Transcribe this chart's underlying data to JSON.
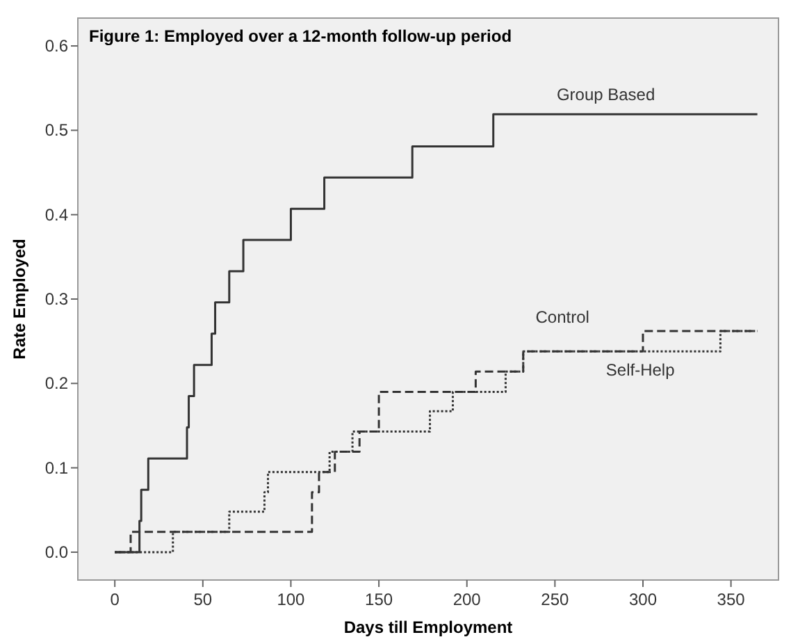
{
  "chart_data": {
    "type": "step",
    "title": "Figure 1: Employed over a 12-month follow-up period",
    "xlabel": "Days till Employment",
    "ylabel": "Rate Employed",
    "xlim": [
      -21,
      377
    ],
    "ylim": [
      -0.033,
      0.633
    ],
    "xticks": [
      0,
      50,
      100,
      150,
      200,
      250,
      300,
      350
    ],
    "yticks": [
      {
        "value": 0,
        "label": "0.0"
      },
      0.1,
      0.2,
      0.3,
      0.4,
      0.5,
      0.6
    ],
    "grid": false,
    "series": [
      {
        "name": "Group Based",
        "color": "#333333",
        "line_style": "solid",
        "x": [
          0,
          14,
          15,
          19,
          41,
          42,
          45,
          55,
          57,
          65,
          73,
          100,
          119,
          169,
          215,
          365
        ],
        "values": [
          0,
          0.037,
          0.074,
          0.111,
          0.148,
          0.185,
          0.222,
          0.259,
          0.296,
          0.333,
          0.37,
          0.407,
          0.444,
          0.481,
          0.519,
          0.519
        ]
      },
      {
        "name": "Control",
        "color": "#333333",
        "line_style": "dashed",
        "x": [
          0,
          9,
          112,
          116,
          125,
          139,
          150,
          205,
          232,
          300,
          365
        ],
        "values": [
          0,
          0.024,
          0.071,
          0.095,
          0.119,
          0.143,
          0.19,
          0.214,
          0.238,
          0.262,
          0.262
        ]
      },
      {
        "name": "Self-Help",
        "color": "#333333",
        "line_style": "dotted",
        "x": [
          0,
          33,
          65,
          85,
          87,
          122,
          135,
          179,
          192,
          222,
          232,
          344,
          365
        ],
        "values": [
          0,
          0.024,
          0.048,
          0.071,
          0.095,
          0.119,
          0.143,
          0.167,
          0.19,
          0.214,
          0.238,
          0.262,
          0.262
        ]
      }
    ]
  }
}
